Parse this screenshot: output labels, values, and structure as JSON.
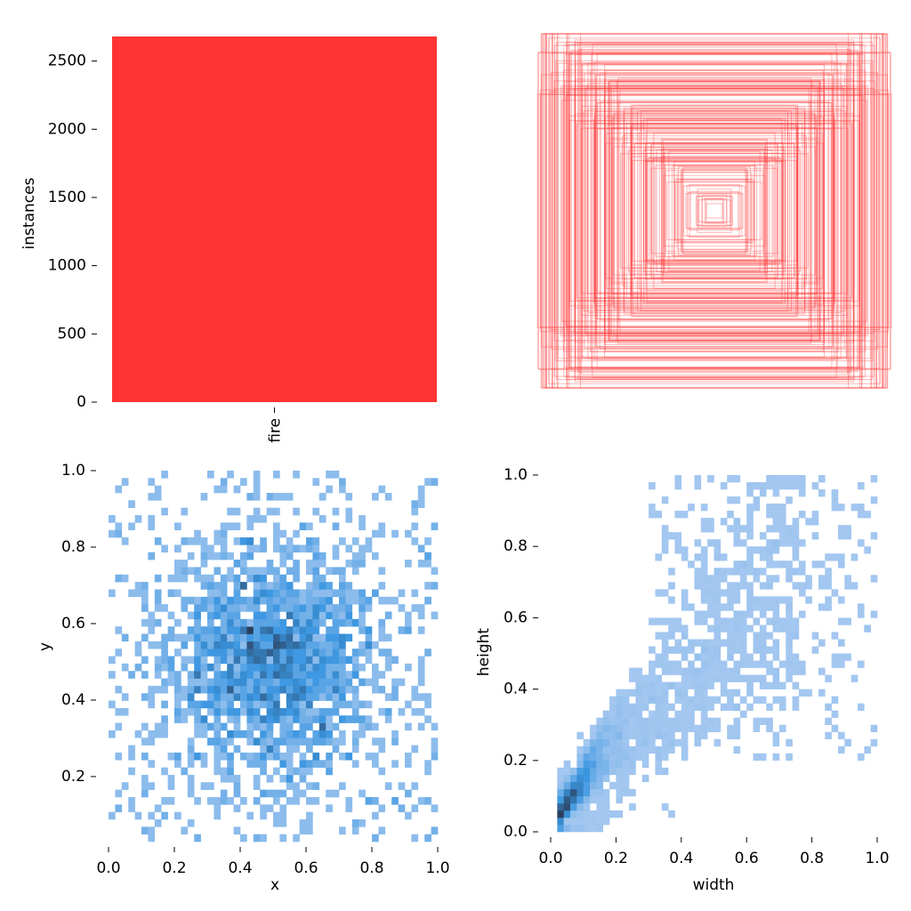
{
  "colors": {
    "bar": "#ff3333",
    "box_stroke": "#ff3333",
    "hist_light": "#a6c8f0",
    "hist_mid": "#3a96e0",
    "hist_dark": "#2b3f5c",
    "axis": "#000000"
  },
  "chart_data": [
    {
      "type": "bar",
      "id": "class-count",
      "categories": [
        "fire"
      ],
      "values": [
        2680
      ],
      "ylabel": "instances",
      "xlabel": "",
      "ylim": [
        0,
        2680
      ],
      "yticks": [
        0,
        500,
        1000,
        1500,
        2000,
        2500
      ],
      "ytick_labels": [
        "0",
        "500",
        "1000",
        "1500",
        "2000",
        "2500"
      ],
      "grid": false
    },
    {
      "type": "box-overlay",
      "id": "label-boxes",
      "description_free": true,
      "center": [
        0.5,
        0.5
      ],
      "box_count_drawn": 220,
      "xlim": [
        0,
        1
      ],
      "ylim": [
        0,
        1
      ],
      "axes_visible": false
    },
    {
      "type": "heatmap",
      "id": "xy-histogram",
      "xlabel": "x",
      "ylabel": "y",
      "xlim": [
        0,
        1
      ],
      "ylim": [
        0.03,
        1.0
      ],
      "xticks": [
        0.0,
        0.2,
        0.4,
        0.6,
        0.8,
        1.0
      ],
      "xtick_labels": [
        "0.0",
        "0.2",
        "0.4",
        "0.6",
        "0.8",
        "1.0"
      ],
      "yticks": [
        0.2,
        0.4,
        0.6,
        0.8,
        1.0
      ],
      "ytick_labels": [
        "0.2",
        "0.4",
        "0.6",
        "0.8",
        "1.0"
      ],
      "bins": 50,
      "distribution": "centered peak near x=0.5, y=0.5",
      "peak": [
        0.5,
        0.5
      ],
      "grid": false
    },
    {
      "type": "heatmap",
      "id": "wh-histogram",
      "xlabel": "width",
      "ylabel": "height",
      "xlim": [
        0,
        1
      ],
      "ylim": [
        0,
        1
      ],
      "xticks": [
        0.0,
        0.2,
        0.4,
        0.6,
        0.8,
        1.0
      ],
      "xtick_labels": [
        "0.0",
        "0.2",
        "0.4",
        "0.6",
        "0.8",
        "1.0"
      ],
      "yticks": [
        0.0,
        0.2,
        0.4,
        0.6,
        0.8,
        1.0
      ],
      "ytick_labels": [
        "0.0",
        "0.2",
        "0.4",
        "0.6",
        "0.8",
        "1.0"
      ],
      "bins": 50,
      "distribution": "concentrated near small widths/heights, correlated along diagonal",
      "peak": [
        0.05,
        0.08
      ],
      "grid": false
    }
  ]
}
